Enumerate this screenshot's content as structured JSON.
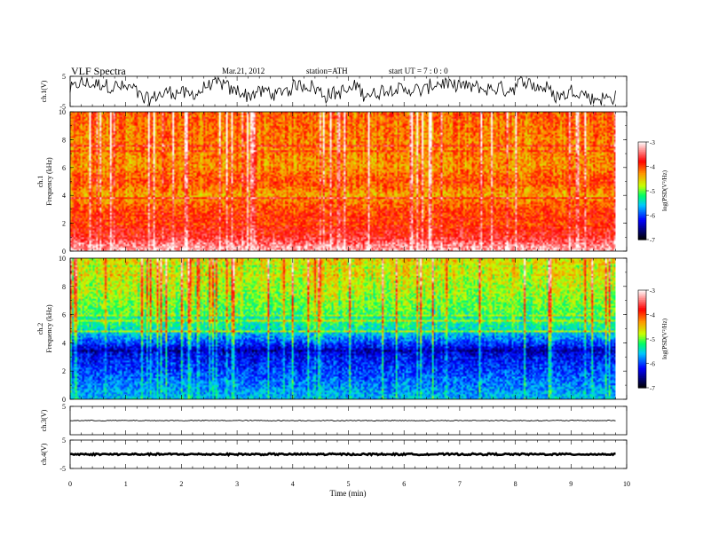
{
  "header": {
    "title": "VLF  Spectra",
    "date": "Mar.21, 2012",
    "station": "station=ATH",
    "start": "start  UT  =    7  : 0  : 0"
  },
  "chart_data": {
    "type": "heatmap",
    "xlabel": "Time  (min)",
    "xlim": [
      0,
      10
    ],
    "x_ticks": [
      "0",
      "1",
      "2",
      "3",
      "4",
      "5",
      "6",
      "7",
      "8",
      "9",
      "10"
    ],
    "data_end_min": 9.8,
    "panels": [
      {
        "id": "ch1-waveform",
        "kind": "waveform",
        "ylabel": "ch.1(V)",
        "ylim": [
          -5,
          5
        ],
        "y_ticks": [
          "5",
          "-5"
        ],
        "level": 0.3,
        "amplitude": 4.6
      },
      {
        "id": "ch1-spectrogram",
        "kind": "spectrogram",
        "ylabel_top": "ch.1",
        "ylabel": "Frequency  (kHz)",
        "ylim": [
          0,
          10
        ],
        "y_ticks": [
          "0",
          "2",
          "4",
          "6",
          "8",
          "10"
        ],
        "mean_log_psd_by_freq_khz": [
          [
            0.0,
            -3.2
          ],
          [
            0.5,
            -3.4
          ],
          [
            1.0,
            -3.7
          ],
          [
            2.0,
            -3.9
          ],
          [
            3.0,
            -4.0
          ],
          [
            4.0,
            -4.4
          ],
          [
            5.0,
            -4.0
          ],
          [
            6.0,
            -4.3
          ],
          [
            8.0,
            -4.2
          ],
          [
            10.0,
            -4.1
          ]
        ]
      },
      {
        "id": "ch2-spectrogram",
        "kind": "spectrogram",
        "ylabel_top": "ch.2",
        "ylabel": "Frequency  (kHz)",
        "ylim": [
          0,
          10
        ],
        "y_ticks": [
          "0",
          "2",
          "4",
          "6",
          "8",
          "10"
        ],
        "mean_log_psd_by_freq_khz": [
          [
            0.0,
            -5.6
          ],
          [
            1.0,
            -5.8
          ],
          [
            2.0,
            -6.0
          ],
          [
            3.0,
            -6.2
          ],
          [
            3.5,
            -6.4
          ],
          [
            4.0,
            -6.0
          ],
          [
            5.0,
            -5.4
          ],
          [
            6.0,
            -5.1
          ],
          [
            8.0,
            -4.8
          ],
          [
            10.0,
            -4.6
          ]
        ]
      },
      {
        "id": "ch3-waveform",
        "kind": "waveform",
        "ylabel": "ch.3(V)",
        "ylim": [
          -5,
          5
        ],
        "y_ticks": [
          "5"
        ],
        "level": 0.0,
        "amplitude": 0.15
      },
      {
        "id": "ch4-waveform",
        "kind": "waveform",
        "ylabel": "ch.4(V)",
        "ylim": [
          -5,
          5
        ],
        "y_ticks": [
          "5",
          "-5"
        ],
        "level": 0.0,
        "amplitude": 0.3
      }
    ],
    "colorbars": [
      {
        "id": "colorbar-ch1",
        "label": "log(PSD(V²/Hz)",
        "range": [
          -7,
          -3
        ],
        "ticks": [
          "-3",
          "-4",
          "-5",
          "-6",
          "-7"
        ]
      },
      {
        "id": "colorbar-ch2",
        "label": "log(PSD(V²/Hz)",
        "range": [
          -7,
          -3
        ],
        "ticks": [
          "-3",
          "-4",
          "-5",
          "-6",
          "-7"
        ]
      }
    ],
    "colormap": [
      "#000000",
      "#0000ff",
      "#00c8ff",
      "#00ff64",
      "#c8ff00",
      "#ff9600",
      "#ff0000",
      "#ffffff"
    ],
    "grid": false
  }
}
